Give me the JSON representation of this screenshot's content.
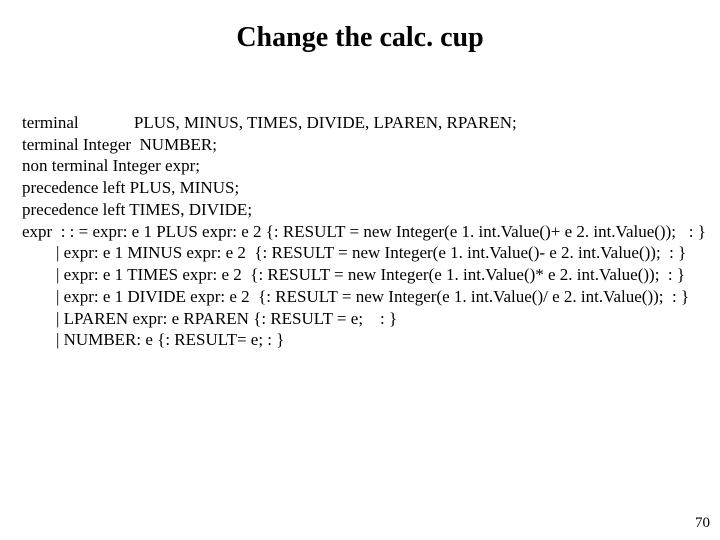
{
  "title": "Change the calc. cup",
  "lines": {
    "l1": "terminal             PLUS, MINUS, TIMES, DIVIDE, LPAREN, RPAREN;",
    "l2": "terminal Integer  NUMBER;",
    "l3": "non terminal Integer expr;",
    "l4": "precedence left PLUS, MINUS;",
    "l5": "precedence left TIMES, DIVIDE;",
    "l6": "expr  : : = expr: e 1 PLUS expr: e 2 {: RESULT = new Integer(e 1. int.Value()+ e 2. int.Value());   : }",
    "l7": "        | expr: e 1 MINUS expr: e 2  {: RESULT = new Integer(e 1. int.Value()- e 2. int.Value());  : }",
    "l8": "        | expr: e 1 TIMES expr: e 2  {: RESULT = new Integer(e 1. int.Value()* e 2. int.Value());  : }",
    "l9": "        | expr: e 1 DIVIDE expr: e 2  {: RESULT = new Integer(e 1. int.Value()/ e 2. int.Value());  : }",
    "l10": "        | LPAREN expr: e RPAREN {: RESULT = e;    : }",
    "l11": "        | NUMBER: e {: RESULT= e; : }"
  },
  "page_number": "70",
  "style": {
    "background_color": "#ffffff",
    "text_color": "#000000",
    "title_fontsize": 28,
    "body_fontsize": 17,
    "font_family": "Times New Roman"
  }
}
